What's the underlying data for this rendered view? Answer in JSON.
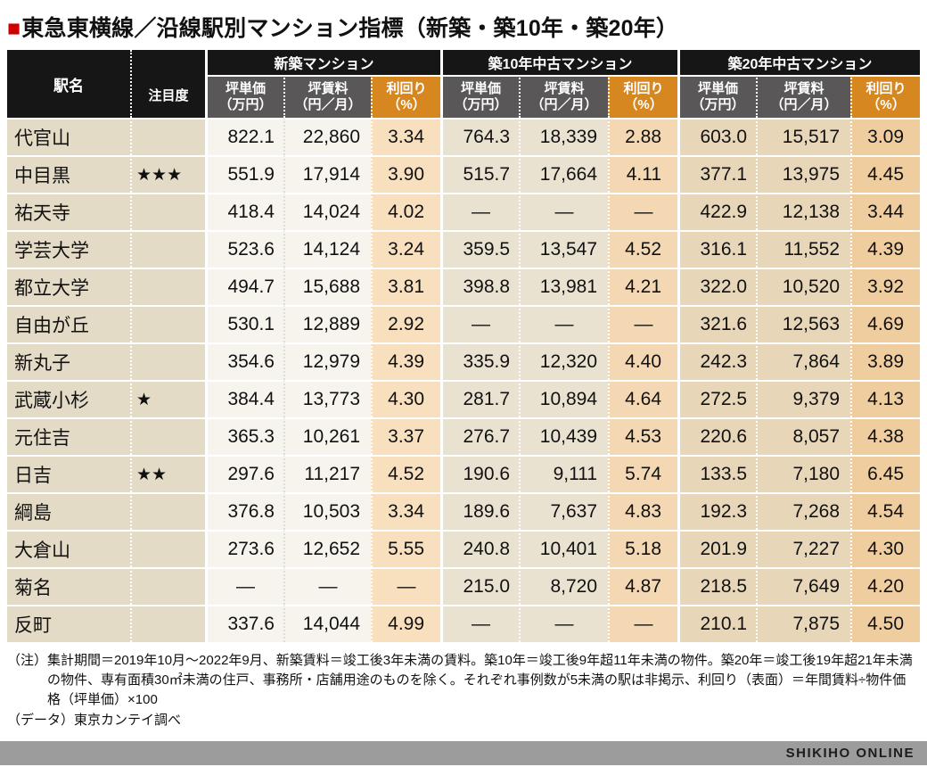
{
  "title": {
    "bullet": "■",
    "text": "東急東横線／沿線駅別マンション指標（新築・築10年・築20年）"
  },
  "table": {
    "corner": {
      "station_label": "駅名",
      "attention_label": "注目度"
    },
    "groups": [
      "新築マンション",
      "築10年中古マンション",
      "築20年中古マンション"
    ],
    "sub_headers": {
      "price": "坪単価\n（万円）",
      "rent": "坪賃料\n（円／月）",
      "yield": "利回り\n（%）"
    }
  },
  "chart_data": {
    "type": "table",
    "title": "東急東横線／沿線駅別マンション指標（新築・築10年・築20年）",
    "column_groups": [
      "新築マンション",
      "築10年中古マンション",
      "築20年中古マンション"
    ],
    "columns": [
      "駅名",
      "注目度",
      "新築 坪単価（万円）",
      "新築 坪賃料（円／月）",
      "新築 利回り（%）",
      "築10年 坪単価（万円）",
      "築10年 坪賃料（円／月）",
      "築10年 利回り（%）",
      "築20年 坪単価（万円）",
      "築20年 坪賃料（円／月）",
      "築20年 利回り（%）"
    ],
    "rows": [
      [
        "代官山",
        "",
        "822.1",
        "22,860",
        "3.34",
        "764.3",
        "18,339",
        "2.88",
        "603.0",
        "15,517",
        "3.09"
      ],
      [
        "中目黒",
        "★★★",
        "551.9",
        "17,914",
        "3.90",
        "515.7",
        "17,664",
        "4.11",
        "377.1",
        "13,975",
        "4.45"
      ],
      [
        "祐天寺",
        "",
        "418.4",
        "14,024",
        "4.02",
        "—",
        "—",
        "—",
        "422.9",
        "12,138",
        "3.44"
      ],
      [
        "学芸大学",
        "",
        "523.6",
        "14,124",
        "3.24",
        "359.5",
        "13,547",
        "4.52",
        "316.1",
        "11,552",
        "4.39"
      ],
      [
        "都立大学",
        "",
        "494.7",
        "15,688",
        "3.81",
        "398.8",
        "13,981",
        "4.21",
        "322.0",
        "10,520",
        "3.92"
      ],
      [
        "自由が丘",
        "",
        "530.1",
        "12,889",
        "2.92",
        "—",
        "—",
        "—",
        "321.6",
        "12,563",
        "4.69"
      ],
      [
        "新丸子",
        "",
        "354.6",
        "12,979",
        "4.39",
        "335.9",
        "12,320",
        "4.40",
        "242.3",
        "7,864",
        "3.89"
      ],
      [
        "武蔵小杉",
        "★",
        "384.4",
        "13,773",
        "4.30",
        "281.7",
        "10,894",
        "4.64",
        "272.5",
        "9,379",
        "4.13"
      ],
      [
        "元住吉",
        "",
        "365.3",
        "10,261",
        "3.37",
        "276.7",
        "10,439",
        "4.53",
        "220.6",
        "8,057",
        "4.38"
      ],
      [
        "日吉",
        "★★",
        "297.6",
        "11,217",
        "4.52",
        "190.6",
        "9,111",
        "5.74",
        "133.5",
        "7,180",
        "6.45"
      ],
      [
        "綱島",
        "",
        "376.8",
        "10,503",
        "3.34",
        "189.6",
        "7,637",
        "4.83",
        "192.3",
        "7,268",
        "4.54"
      ],
      [
        "大倉山",
        "",
        "273.6",
        "12,652",
        "5.55",
        "240.8",
        "10,401",
        "5.18",
        "201.9",
        "7,227",
        "4.30"
      ],
      [
        "菊名",
        "",
        "—",
        "—",
        "—",
        "215.0",
        "8,720",
        "4.87",
        "218.5",
        "7,649",
        "4.20"
      ],
      [
        "反町",
        "",
        "337.6",
        "14,044",
        "4.99",
        "—",
        "—",
        "—",
        "210.1",
        "7,875",
        "4.50"
      ]
    ]
  },
  "notes": {
    "note": "（注）集計期間＝2019年10月～2022年9月、新築賃料＝竣工後3年未満の賃料。築10年＝竣工後9年超11年未満の物件。築20年＝竣工後19年超21年未満の物件、専有面積30㎡未満の住戸、事務所・店舗用途のものを除く。それぞれ事例数が5未満の駅は非掲示、利回り（表面）＝年間賃料÷物件価格（坪単価）×100",
    "source": "（データ）東京カンテイ調べ"
  },
  "footer": {
    "brand": "SHIKIHO ONLINE"
  },
  "colors": {
    "accent_red": "#cc0000",
    "header_black": "#161616",
    "header_gray": "#595757",
    "yield_orange": "#d6871f",
    "station_tan": "#e4dbc6",
    "used10_beige": "#eae2d0",
    "used20_tan": "#e7d6b8",
    "footer_gray": "#9c9c9c"
  }
}
